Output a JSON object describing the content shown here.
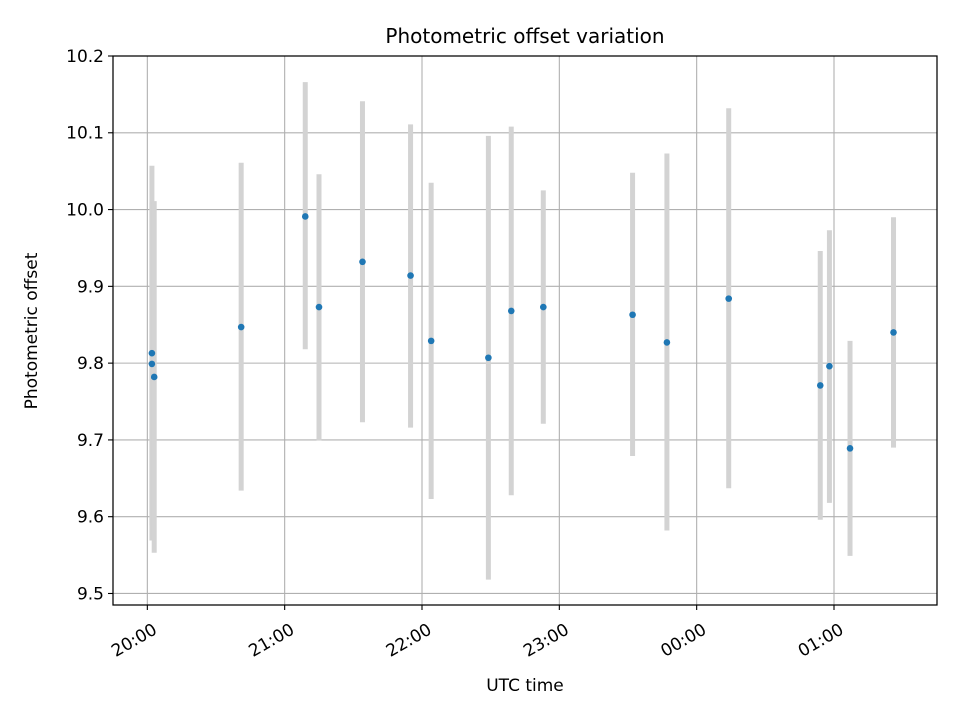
{
  "chart_data": {
    "type": "scatter",
    "title": "Photometric offset variation",
    "xlabel": "UTC time",
    "ylabel": "Photometric offset",
    "xlim": [
      "19:45",
      "01:45"
    ],
    "ylim": [
      9.485,
      10.2
    ],
    "grid": true,
    "colors": {
      "point": "#1f77b4",
      "errorbar": "#d3d3d3",
      "grid": "#b0b0b0"
    },
    "x_ticks": [
      "20:00",
      "21:00",
      "22:00",
      "23:00",
      "00:00",
      "01:00"
    ],
    "y_ticks": [
      "9.5",
      "9.6",
      "9.7",
      "9.8",
      "9.9",
      "10.0",
      "10.1",
      "10.2"
    ],
    "points": [
      {
        "t": "20:02",
        "y": 9.813,
        "lo": 9.569,
        "hi": 10.057
      },
      {
        "t": "20:02",
        "y": 9.799,
        "lo": 9.589,
        "hi": 10.009
      },
      {
        "t": "20:03",
        "y": 9.782,
        "lo": 9.553,
        "hi": 10.011
      },
      {
        "t": "20:41",
        "y": 9.847,
        "lo": 9.634,
        "hi": 10.061
      },
      {
        "t": "21:09",
        "y": 9.991,
        "lo": 9.818,
        "hi": 10.166
      },
      {
        "t": "21:15",
        "y": 9.873,
        "lo": 9.699,
        "hi": 10.046
      },
      {
        "t": "21:34",
        "y": 9.932,
        "lo": 9.723,
        "hi": 10.141
      },
      {
        "t": "21:55",
        "y": 9.914,
        "lo": 9.716,
        "hi": 10.111
      },
      {
        "t": "22:04",
        "y": 9.829,
        "lo": 9.623,
        "hi": 10.035
      },
      {
        "t": "22:29",
        "y": 9.807,
        "lo": 9.518,
        "hi": 10.096
      },
      {
        "t": "22:39",
        "y": 9.868,
        "lo": 9.628,
        "hi": 10.108
      },
      {
        "t": "22:53",
        "y": 9.873,
        "lo": 9.721,
        "hi": 10.025
      },
      {
        "t": "23:32",
        "y": 9.863,
        "lo": 9.679,
        "hi": 10.048
      },
      {
        "t": "23:47",
        "y": 9.827,
        "lo": 9.582,
        "hi": 10.073
      },
      {
        "t": "00:14",
        "y": 9.884,
        "lo": 9.637,
        "hi": 10.132
      },
      {
        "t": "00:54",
        "y": 9.771,
        "lo": 9.596,
        "hi": 9.946
      },
      {
        "t": "00:58",
        "y": 9.796,
        "lo": 9.618,
        "hi": 9.973
      },
      {
        "t": "01:07",
        "y": 9.689,
        "lo": 9.549,
        "hi": 9.829
      },
      {
        "t": "01:26",
        "y": 9.84,
        "lo": 9.69,
        "hi": 9.99
      }
    ]
  }
}
